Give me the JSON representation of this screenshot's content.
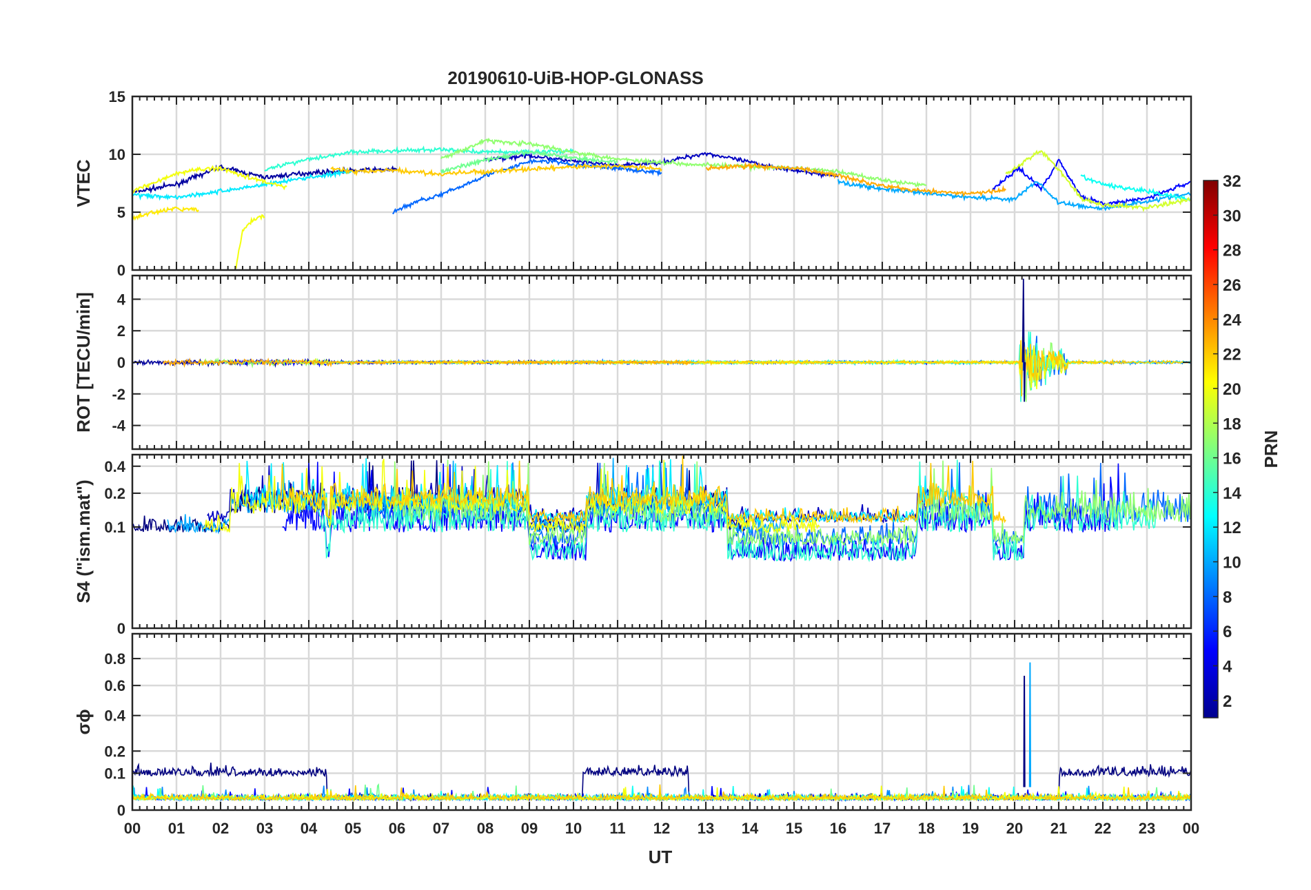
{
  "chart_data": {
    "type": "line",
    "title": "20190610-UiB-HOP-GLONASS",
    "xlabel": "UT",
    "x_tick_labels": [
      "00",
      "01",
      "02",
      "03",
      "04",
      "05",
      "06",
      "07",
      "08",
      "09",
      "10",
      "11",
      "12",
      "13",
      "14",
      "15",
      "16",
      "17",
      "18",
      "19",
      "20",
      "21",
      "22",
      "23",
      "00"
    ],
    "xlim": [
      0,
      24
    ],
    "grid": true,
    "colorbar": {
      "label": "PRN",
      "range": [
        1,
        32
      ],
      "tick_labels": [
        "2",
        "4",
        "6",
        "8",
        "10",
        "12",
        "14",
        "16",
        "18",
        "20",
        "22",
        "24",
        "26",
        "28",
        "30",
        "32"
      ],
      "colormap": "jet",
      "placement": "right"
    },
    "panels": [
      {
        "id": "vtec",
        "ylabel": "VTEC",
        "ylim": [
          0,
          15
        ],
        "y_ticks": [
          0,
          5,
          10,
          15
        ],
        "y_tick_labels": [
          "0",
          "5",
          "10",
          "15"
        ],
        "series": [
          {
            "prn": 2,
            "x": [
              0,
              1,
              2,
              3,
              4,
              5,
              6
            ],
            "y": [
              6.7,
              7.4,
              8.9,
              8.0,
              8.4,
              8.6,
              8.7
            ]
          },
          {
            "prn": 3,
            "x": [
              8,
              9,
              10,
              11,
              12,
              13,
              14,
              15,
              16
            ],
            "y": [
              9.5,
              9.9,
              9.4,
              9.0,
              9.3,
              10.1,
              9.3,
              8.6,
              8.1
            ]
          },
          {
            "prn": 5,
            "x": [
              19.5,
              20.1,
              20.6,
              21.0,
              21.5,
              22.0,
              22.5,
              23.0,
              24.0
            ],
            "y": [
              7.0,
              8.8,
              7.0,
              9.5,
              6.4,
              5.7,
              5.9,
              6.2,
              7.6
            ]
          },
          {
            "prn": 8,
            "x": [
              5.9,
              6.5,
              7.0,
              7.5,
              8.0,
              8.5,
              9.0,
              9.5,
              10.0,
              11.0,
              12.0
            ],
            "y": [
              5.0,
              6.0,
              6.5,
              7.3,
              8.2,
              8.7,
              9.4,
              9.4,
              9.1,
              8.8,
              8.4
            ]
          },
          {
            "prn": 10,
            "x": [
              16,
              17,
              18,
              19,
              20,
              20.5,
              21,
              22,
              24
            ],
            "y": [
              7.6,
              7.0,
              6.6,
              6.3,
              6.1,
              7.7,
              5.8,
              5.3,
              6.6
            ]
          },
          {
            "prn": 12,
            "x": [
              0,
              0.5,
              1,
              2,
              3,
              4,
              5
            ],
            "y": [
              6.5,
              6.4,
              6.3,
              6.8,
              7.4,
              8.0,
              8.5
            ]
          },
          {
            "prn": 13,
            "x": [
              21.5,
              22,
              23,
              24
            ],
            "y": [
              8.1,
              7.4,
              6.8,
              6.1
            ]
          },
          {
            "prn": 14,
            "x": [
              3,
              4,
              5,
              6,
              7,
              8,
              9,
              10
            ],
            "y": [
              8.7,
              9.6,
              10.2,
              10.3,
              10.4,
              10.2,
              10.2,
              10.3
            ]
          },
          {
            "prn": 16,
            "x": [
              7,
              8,
              9,
              10,
              11
            ],
            "y": [
              8.5,
              9.5,
              10.2,
              9.7,
              9.3
            ]
          },
          {
            "prn": 17,
            "x": [
              7,
              8,
              9,
              10,
              11,
              12,
              13,
              14,
              15,
              16,
              17,
              18
            ],
            "y": [
              9.6,
              11.2,
              10.9,
              10.2,
              9.6,
              9.3,
              9.1,
              8.9,
              8.8,
              8.5,
              7.8,
              7.3
            ]
          },
          {
            "prn": 19,
            "x": [
              19.8,
              20.3,
              20.6,
              21.0,
              21.5,
              22.0,
              23.0,
              24.0
            ],
            "y": [
              8.3,
              9.6,
              10.3,
              8.7,
              6.2,
              5.6,
              5.4,
              6.1
            ]
          },
          {
            "prn": 20,
            "x": [
              0,
              0.5,
              1.0,
              1.5,
              2.0,
              2.5,
              3.0,
              3.5
            ],
            "y": [
              6.8,
              7.6,
              8.3,
              8.7,
              8.8,
              8.2,
              7.6,
              7.2
            ]
          },
          {
            "prn": 20,
            "x": [
              2.35,
              2.5,
              2.7,
              2.9,
              3.0
            ],
            "y": [
              0.2,
              3.4,
              4.2,
              4.6,
              4.6
            ]
          },
          {
            "prn": 21,
            "x": [
              0,
              0.5,
              1.0,
              1.5
            ],
            "y": [
              4.5,
              5.0,
              5.3,
              5.2
            ]
          },
          {
            "prn": 22,
            "x": [
              4.5,
              5.0,
              6.0,
              7.0,
              8.0,
              9.0,
              10.0,
              11.0,
              12.0
            ],
            "y": [
              8.8,
              8.5,
              8.6,
              8.3,
              8.5,
              8.7,
              8.9,
              9.0,
              8.7
            ]
          },
          {
            "prn": 23,
            "x": [
              13,
              14,
              15,
              16,
              17,
              18,
              19,
              19.8
            ],
            "y": [
              8.8,
              9.0,
              8.8,
              8.2,
              7.3,
              6.8,
              6.6,
              6.9
            ]
          }
        ]
      },
      {
        "id": "rot",
        "ylabel": "ROT [TECU/min]",
        "ylim": [
          -5.5,
          5.5
        ],
        "y_ticks": [
          -4,
          -2,
          0,
          2,
          4
        ],
        "y_tick_labels": [
          "-4",
          "-2",
          "0",
          "2",
          "4"
        ],
        "baseline": 0,
        "noise_amplitude": 0.3,
        "burst": {
          "x": [
            20.1,
            21.2
          ],
          "peak_up": 5.3,
          "peak_down": -2.5
        }
      },
      {
        "id": "s4",
        "ylabel": "S4 (\"ism.mat\")",
        "ylim": [
          0,
          0.6
        ],
        "y_ticks": [
          0,
          0.1,
          0.2,
          0.4
        ],
        "y_tick_labels": [
          "0",
          "0.1",
          "0.2",
          "0.4"
        ],
        "y_scale": "reciprocal",
        "active_periods": [
          [
            2.2,
            4.4
          ],
          [
            4.5,
            9.0
          ],
          [
            10.3,
            13.5
          ],
          [
            17.8,
            19.5
          ],
          [
            20.2,
            24.0
          ]
        ]
      },
      {
        "id": "sigma",
        "ylabel": "σϕ",
        "ylim": [
          0,
          1.0
        ],
        "y_ticks": [
          0,
          0.1,
          0.2,
          0.4,
          0.6,
          0.8
        ],
        "y_tick_labels": [
          "0",
          "0.1",
          "0.2",
          "0.4",
          "0.6",
          "0.8"
        ],
        "y_scale": "power",
        "spikes": [
          {
            "prn": 1,
            "x": 20.22,
            "y": 0.67
          },
          {
            "prn": 10,
            "x": 20.35,
            "y": 0.77
          }
        ],
        "enhanced_periods": [
          [
            0,
            4.4
          ],
          [
            10.2,
            12.6
          ],
          [
            21.0,
            24.0
          ]
        ]
      }
    ]
  }
}
